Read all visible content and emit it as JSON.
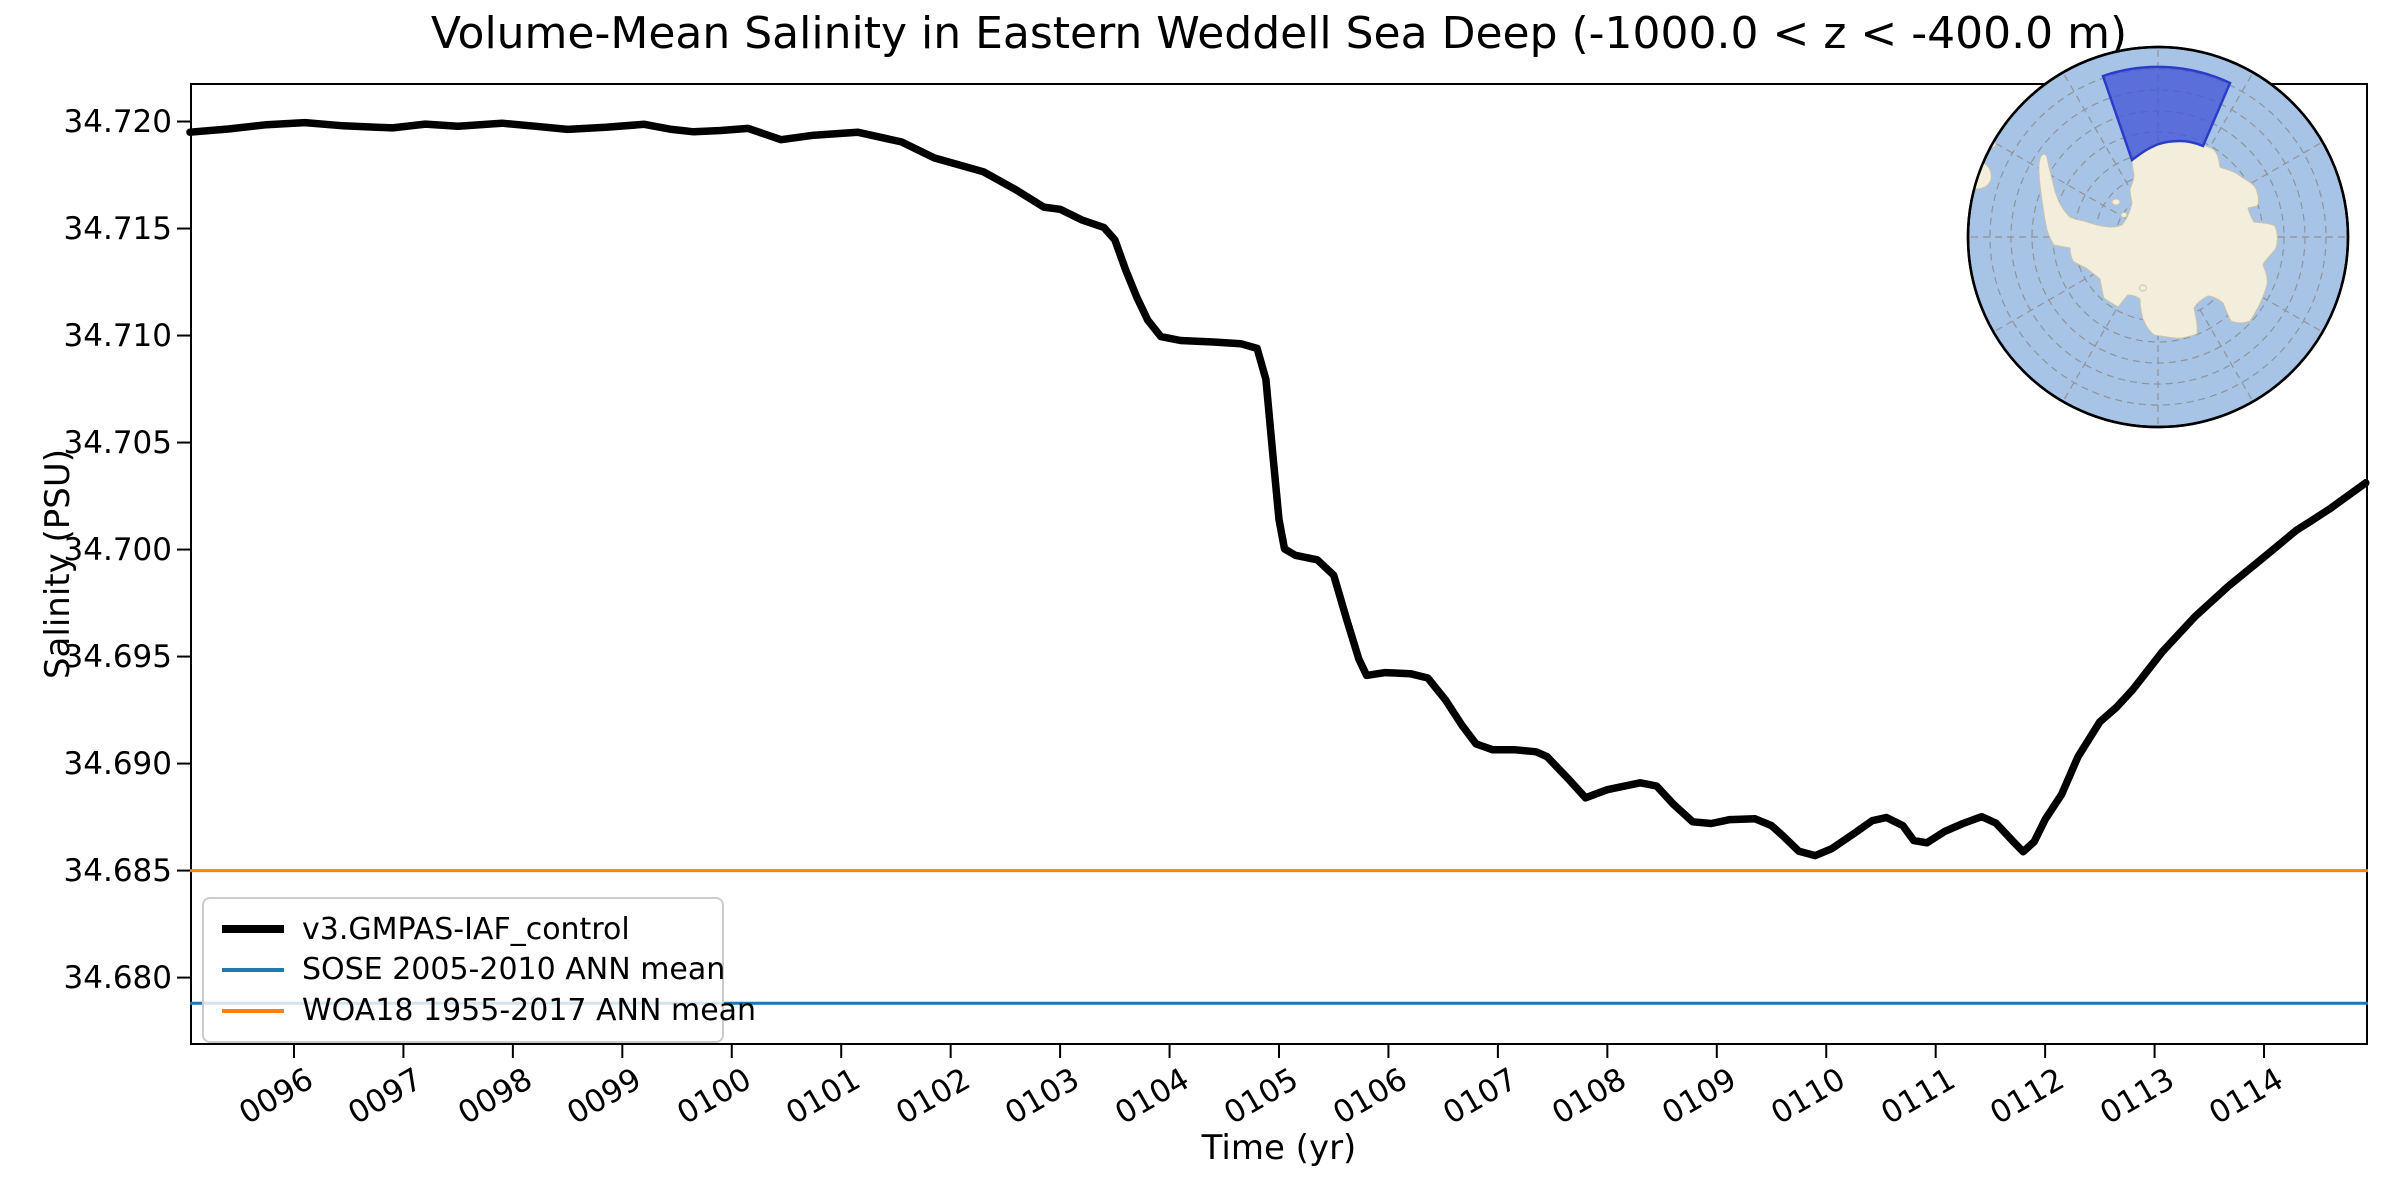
{
  "title": "Volume-Mean Salinity in Eastern Weddell Sea Deep (-1000.0 < z < -400.0 m)",
  "axes": {
    "xlabel": "Time (yr)",
    "ylabel": "Salinity (PSU)",
    "x_ticks": [
      {
        "value": 96,
        "label": "0096"
      },
      {
        "value": 97,
        "label": "0097"
      },
      {
        "value": 98,
        "label": "0098"
      },
      {
        "value": 99,
        "label": "0099"
      },
      {
        "value": 100,
        "label": "0100"
      },
      {
        "value": 101,
        "label": "0101"
      },
      {
        "value": 102,
        "label": "0102"
      },
      {
        "value": 103,
        "label": "0103"
      },
      {
        "value": 104,
        "label": "0104"
      },
      {
        "value": 105,
        "label": "0105"
      },
      {
        "value": 106,
        "label": "0106"
      },
      {
        "value": 107,
        "label": "0107"
      },
      {
        "value": 108,
        "label": "0108"
      },
      {
        "value": 109,
        "label": "0109"
      },
      {
        "value": 110,
        "label": "0110"
      },
      {
        "value": 111,
        "label": "0111"
      },
      {
        "value": 112,
        "label": "0112"
      },
      {
        "value": 113,
        "label": "0113"
      },
      {
        "value": 114,
        "label": "0114"
      }
    ],
    "y_ticks": [
      {
        "value": 34.68,
        "label": "34.680"
      },
      {
        "value": 34.685,
        "label": "34.685"
      },
      {
        "value": 34.69,
        "label": "34.690"
      },
      {
        "value": 34.695,
        "label": "34.695"
      },
      {
        "value": 34.7,
        "label": "34.700"
      },
      {
        "value": 34.705,
        "label": "34.705"
      },
      {
        "value": 34.71,
        "label": "34.710"
      },
      {
        "value": 34.715,
        "label": "34.715"
      },
      {
        "value": 34.72,
        "label": "34.720"
      }
    ]
  },
  "legend": {
    "entries": [
      {
        "label": "v3.GMPAS-IAF_control",
        "color": "#000000",
        "sample_height": 8
      },
      {
        "label": "SOSE 2005-2010 ANN mean",
        "color": "#1f77b4",
        "sample_height": 4
      },
      {
        "label": "WOA18 1955-2017 ANN mean",
        "color": "#ff7f0e",
        "sample_height": 4
      }
    ]
  },
  "chart_data": {
    "type": "line",
    "title": "Volume-Mean Salinity in Eastern Weddell Sea Deep (-1000.0 < z < -400.0 m)",
    "xlabel": "Time (yr)",
    "ylabel": "Salinity (PSU)",
    "xlim": [
      95.05,
      114.95
    ],
    "ylim": [
      34.67685,
      34.7218
    ],
    "grid": false,
    "legend_position": "lower left",
    "series": [
      {
        "name": "v3.GMPAS-IAF_control",
        "color": "#000000",
        "linewidth": 7.5,
        "points": [
          [
            95.05,
            34.7195
          ],
          [
            95.4,
            34.71965
          ],
          [
            95.75,
            34.71985
          ],
          [
            96.1,
            34.71995
          ],
          [
            96.45,
            34.7198
          ],
          [
            96.9,
            34.7197
          ],
          [
            97.2,
            34.71988
          ],
          [
            97.5,
            34.71978
          ],
          [
            97.9,
            34.71992
          ],
          [
            98.2,
            34.71978
          ],
          [
            98.5,
            34.71963
          ],
          [
            98.85,
            34.71973
          ],
          [
            99.2,
            34.71987
          ],
          [
            99.45,
            34.71963
          ],
          [
            99.65,
            34.71952
          ],
          [
            99.9,
            34.71958
          ],
          [
            100.15,
            34.71968
          ],
          [
            100.45,
            34.71915
          ],
          [
            100.75,
            34.71936
          ],
          [
            101.15,
            34.7195
          ],
          [
            101.55,
            34.71905
          ],
          [
            101.85,
            34.7183
          ],
          [
            102.3,
            34.71765
          ],
          [
            102.6,
            34.7168
          ],
          [
            102.85,
            34.716
          ],
          [
            103.0,
            34.7159
          ],
          [
            103.2,
            34.7154
          ],
          [
            103.4,
            34.71505
          ],
          [
            103.5,
            34.71448
          ],
          [
            103.6,
            34.71305
          ],
          [
            103.7,
            34.7118
          ],
          [
            103.8,
            34.71072
          ],
          [
            103.92,
            34.70995
          ],
          [
            104.1,
            34.70977
          ],
          [
            104.4,
            34.7097
          ],
          [
            104.65,
            34.70962
          ],
          [
            104.8,
            34.7094
          ],
          [
            104.88,
            34.70795
          ],
          [
            104.94,
            34.70465
          ],
          [
            105.0,
            34.7014
          ],
          [
            105.05,
            34.70003
          ],
          [
            105.15,
            34.69973
          ],
          [
            105.35,
            34.69952
          ],
          [
            105.5,
            34.6988
          ],
          [
            105.62,
            34.6967
          ],
          [
            105.73,
            34.69487
          ],
          [
            105.8,
            34.69412
          ],
          [
            105.97,
            34.69425
          ],
          [
            106.2,
            34.6942
          ],
          [
            106.36,
            34.694
          ],
          [
            106.52,
            34.69298
          ],
          [
            106.67,
            34.6918
          ],
          [
            106.8,
            34.69092
          ],
          [
            106.95,
            34.69065
          ],
          [
            107.15,
            34.69065
          ],
          [
            107.35,
            34.69055
          ],
          [
            107.45,
            34.69032
          ],
          [
            107.65,
            34.68925
          ],
          [
            107.8,
            34.6884
          ],
          [
            108.0,
            34.68878
          ],
          [
            108.3,
            34.6891
          ],
          [
            108.45,
            34.68895
          ],
          [
            108.6,
            34.68812
          ],
          [
            108.78,
            34.68728
          ],
          [
            108.95,
            34.6872
          ],
          [
            109.12,
            34.68738
          ],
          [
            109.35,
            34.68742
          ],
          [
            109.5,
            34.6871
          ],
          [
            109.62,
            34.68655
          ],
          [
            109.75,
            34.6859
          ],
          [
            109.9,
            34.6857
          ],
          [
            110.05,
            34.68602
          ],
          [
            110.25,
            34.68672
          ],
          [
            110.42,
            34.68733
          ],
          [
            110.55,
            34.68748
          ],
          [
            110.7,
            34.6871
          ],
          [
            110.8,
            34.6864
          ],
          [
            110.92,
            34.6863
          ],
          [
            111.08,
            34.68682
          ],
          [
            111.25,
            34.6872
          ],
          [
            111.42,
            34.68752
          ],
          [
            111.55,
            34.68722
          ],
          [
            111.7,
            34.6864
          ],
          [
            111.8,
            34.68588
          ],
          [
            111.9,
            34.68635
          ],
          [
            112.0,
            34.68738
          ],
          [
            112.15,
            34.68855
          ],
          [
            112.3,
            34.69032
          ],
          [
            112.5,
            34.69195
          ],
          [
            112.65,
            34.69262
          ],
          [
            112.8,
            34.69345
          ],
          [
            113.07,
            34.69522
          ],
          [
            113.37,
            34.69687
          ],
          [
            113.67,
            34.69827
          ],
          [
            113.97,
            34.69952
          ],
          [
            114.3,
            34.70092
          ],
          [
            114.42,
            34.7013
          ],
          [
            114.6,
            34.7019
          ],
          [
            114.93,
            34.70312
          ]
        ]
      }
    ],
    "reference_lines": [
      {
        "name": "SOSE 2005-2010 ANN mean",
        "value": 34.6788,
        "color": "#1f77b4",
        "linewidth": 3
      },
      {
        "name": "WOA18 1955-2017 ANN mean",
        "value": 34.685,
        "color": "#ff7f0e",
        "linewidth": 3
      }
    ]
  },
  "inset_map": {
    "description": "South polar stereographic map of Antarctica with Eastern Weddell Sea sector highlighted",
    "ocean_color": "#a7c3e6",
    "land_color": "#f2eedb",
    "highlight_fill": "#4457d6",
    "highlight_border": "#2b3cc9",
    "graticule_color": "#8b8b8b"
  }
}
